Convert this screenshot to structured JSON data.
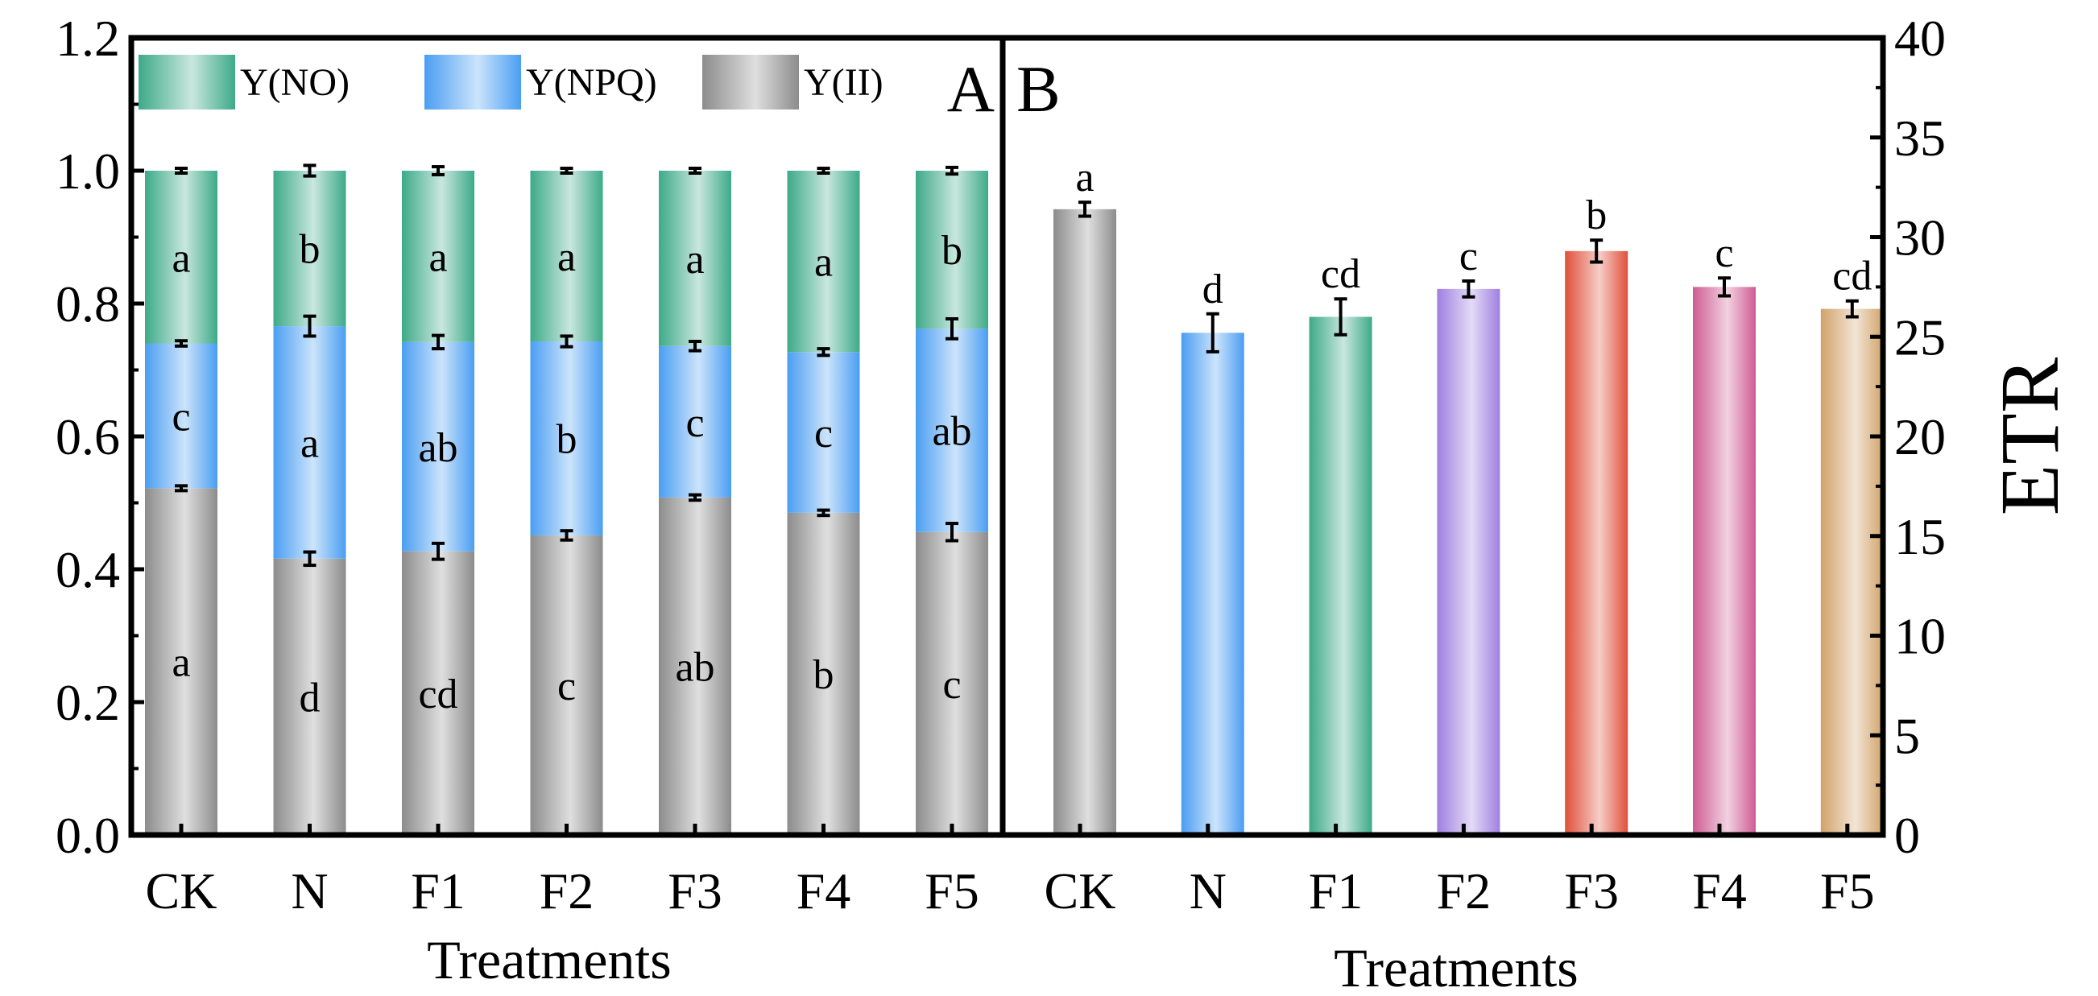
{
  "chart_data": [
    {
      "type": "bar",
      "stacked": true,
      "panel_label": "A",
      "title": "",
      "xlabel": "Treatments",
      "ylabel": "",
      "ylim": [
        0,
        1.2
      ],
      "yticks": [
        "0.0",
        "0.2",
        "0.4",
        "0.6",
        "0.8",
        "1.0",
        "1.2"
      ],
      "categories": [
        "CK",
        "N",
        "F1",
        "F2",
        "F3",
        "F4",
        "F5"
      ],
      "legend_position": "top",
      "series": [
        {
          "name": "Y(II)",
          "values": [
            0.522,
            0.416,
            0.427,
            0.451,
            0.508,
            0.485,
            0.456
          ],
          "errors": [
            0.003,
            0.01,
            0.012,
            0.007,
            0.004,
            0.004,
            0.013
          ],
          "letters": [
            "a",
            "d",
            "cd",
            "c",
            "ab",
            "b",
            "c"
          ],
          "color": "#8c8c8c"
        },
        {
          "name": "Y(NPQ)",
          "values": [
            0.218,
            0.35,
            0.315,
            0.292,
            0.228,
            0.242,
            0.306
          ],
          "errors": [
            0.004,
            0.015,
            0.01,
            0.008,
            0.007,
            0.005,
            0.015
          ],
          "letters": [
            "c",
            "a",
            "ab",
            "b",
            "c",
            "c",
            "ab"
          ],
          "color": "#4a9ef2"
        },
        {
          "name": "Y(NO)",
          "values": [
            0.26,
            0.234,
            0.258,
            0.257,
            0.264,
            0.273,
            0.238
          ],
          "errors": [
            0.002,
            0.008,
            0.006,
            0.003,
            0.003,
            0.003,
            0.005
          ],
          "letters": [
            "a",
            "b",
            "a",
            "a",
            "a",
            "a",
            "b"
          ],
          "color": "#3daa88"
        }
      ]
    },
    {
      "type": "bar",
      "panel_label": "B",
      "title": "",
      "xlabel": "Treatments",
      "ylabel": "ETR",
      "ylim": [
        0,
        40
      ],
      "yticks": [
        "0",
        "5",
        "10",
        "15",
        "20",
        "25",
        "30",
        "35",
        "40"
      ],
      "categories": [
        "CK",
        "N",
        "F1",
        "F2",
        "F3",
        "F4",
        "F5"
      ],
      "values": [
        31.4,
        25.2,
        26.0,
        27.4,
        29.3,
        27.5,
        26.4
      ],
      "errors": [
        0.35,
        0.95,
        0.9,
        0.4,
        0.55,
        0.45,
        0.4
      ],
      "letters": [
        "a",
        "d",
        "cd",
        "c",
        "b",
        "c",
        "cd"
      ],
      "colors": [
        "#8c8c8c",
        "#4a9ef2",
        "#3daa88",
        "#9f7fe0",
        "#e0503a",
        "#cf5c93",
        "#d2a26a"
      ]
    }
  ]
}
